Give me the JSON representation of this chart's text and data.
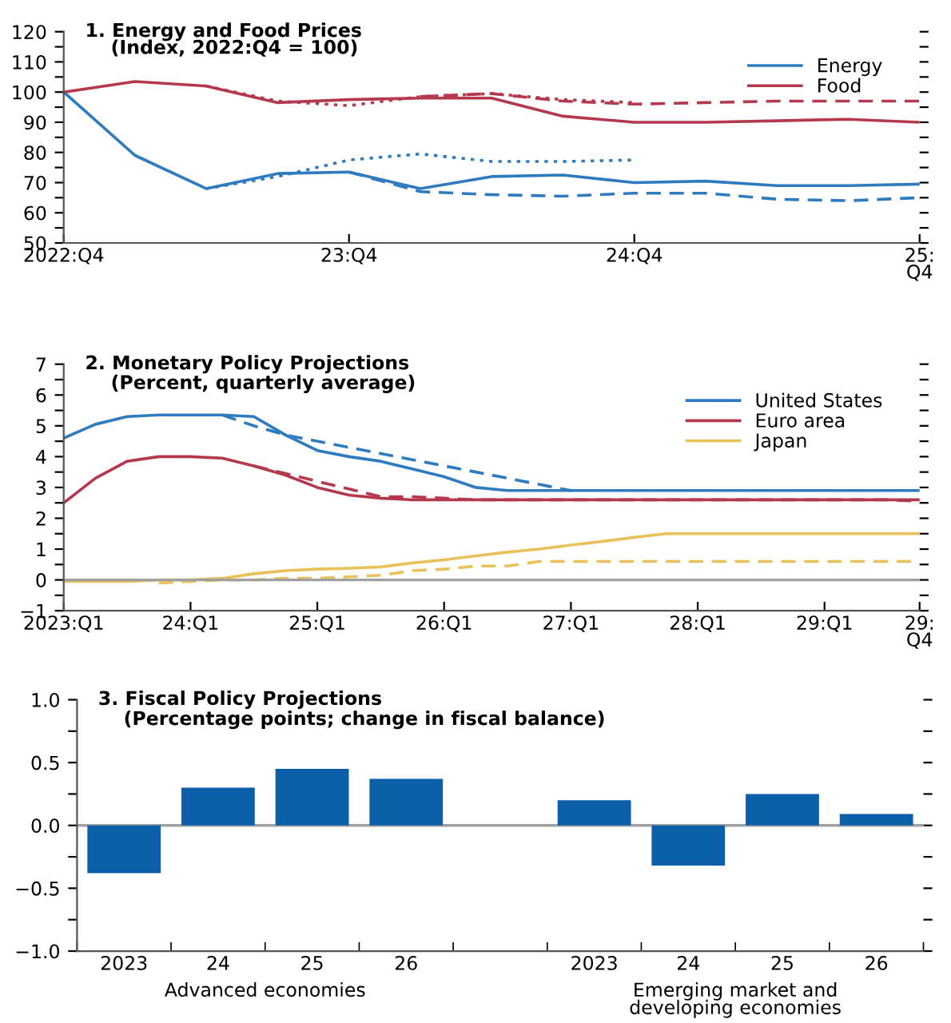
{
  "chart_data": [
    {
      "type": "line",
      "title": "1. Energy and Food Prices",
      "subtitle": "(Index, 2022:Q4 = 100)",
      "legend": "top right",
      "categories": [
        "2022:Q4",
        null,
        null,
        null,
        "23:Q4",
        null,
        null,
        null,
        "24:Q4",
        null,
        null,
        null,
        "25:\nQ4"
      ],
      "ylim": [
        50,
        120
      ],
      "yticks": [
        50,
        {
          "value": 55,
          "label": null
        },
        60,
        {
          "value": 65,
          "label": null
        },
        70,
        {
          "value": 75,
          "label": null
        },
        80,
        {
          "value": 85,
          "label": null
        },
        90,
        {
          "value": 95,
          "label": null
        },
        100,
        {
          "value": 105,
          "label": null
        },
        110,
        {
          "value": 115,
          "label": null
        },
        120
      ],
      "series": [
        {
          "name": "Energy",
          "color": "#2f7bbf",
          "line_style": "solid",
          "values": [
            100,
            79,
            68,
            73,
            73.5,
            68,
            72,
            72.5,
            70,
            70.5,
            69,
            69,
            69.5
          ]
        },
        {
          "color": "#2f7bbf",
          "line_style": "dashed",
          "values": [
            null,
            null,
            null,
            null,
            73.5,
            67,
            66,
            65.5,
            66.5,
            66.5,
            64.5,
            64,
            65
          ]
        },
        {
          "color": "#2f7bbf",
          "line_style": "dotted",
          "values": [
            null,
            null,
            68,
            72,
            77.5,
            79.5,
            77,
            77,
            77.5,
            null,
            null,
            null,
            null
          ]
        },
        {
          "name": "Food",
          "color": "#b5394e",
          "line_style": "solid",
          "values": [
            100,
            103.5,
            102,
            96.5,
            97.5,
            98,
            98,
            92,
            90,
            90,
            90.5,
            91,
            90
          ]
        },
        {
          "color": "#b5394e",
          "line_style": "dashed",
          "values": [
            null,
            null,
            null,
            null,
            null,
            98.5,
            99.5,
            97,
            96,
            96.5,
            97,
            97,
            97
          ]
        },
        {
          "color": "#b5394e",
          "line_style": "dotted",
          "values": [
            null,
            null,
            102,
            97,
            95.5,
            98.5,
            99.5,
            97.5,
            96.5,
            null,
            null,
            null,
            null
          ]
        }
      ]
    },
    {
      "type": "line",
      "title": "2. Monetary Policy Projections",
      "subtitle": "(Percent, quarterly average)",
      "legend": "top right",
      "categories": [
        "2023:Q1",
        null,
        null,
        null,
        "24:Q1",
        null,
        null,
        null,
        "25:Q1",
        null,
        null,
        null,
        "26:Q1",
        null,
        null,
        null,
        "27:Q1",
        null,
        null,
        null,
        "28:Q1",
        null,
        null,
        null,
        "29:Q1",
        null,
        null,
        "29:\nQ4"
      ],
      "ylim": [
        -1,
        7
      ],
      "yticks": [
        {
          "value": -1,
          "label": "−1"
        },
        {
          "value": -0.5,
          "label": null
        },
        0,
        {
          "value": 0.5,
          "label": null
        },
        1,
        {
          "value": 1.5,
          "label": null
        },
        2,
        {
          "value": 2.5,
          "label": null
        },
        3,
        {
          "value": 3.5,
          "label": null
        },
        4,
        {
          "value": 4.5,
          "label": null
        },
        5,
        {
          "value": 5.5,
          "label": null
        },
        6,
        {
          "value": 6.5,
          "label": null
        },
        7
      ],
      "ref_lines": [
        {
          "axis": "y",
          "value": 0,
          "color": "#a0a0a0"
        }
      ],
      "series": [
        {
          "name": "United States",
          "color": "#2f7bbf",
          "line_style": "solid",
          "values": [
            4.6,
            5.05,
            5.3,
            5.35,
            5.35,
            5.35,
            5.3,
            4.7,
            4.2,
            4.0,
            3.85,
            3.6,
            3.35,
            3.0,
            2.9,
            2.9,
            2.9,
            2.9,
            2.9,
            2.9,
            2.9,
            2.9,
            2.9,
            2.9,
            2.9,
            2.9,
            2.9,
            2.9
          ]
        },
        {
          "color": "#2f7bbf",
          "line_style": "dashed",
          "values": [
            null,
            null,
            null,
            null,
            null,
            5.35,
            5.0,
            4.7,
            4.5,
            4.3,
            4.1,
            3.9,
            3.7,
            3.5,
            3.3,
            3.1,
            2.9,
            null,
            null,
            null,
            null,
            null,
            null,
            null,
            null,
            null,
            null,
            null
          ]
        },
        {
          "name": "Euro area",
          "color": "#b5394e",
          "line_style": "solid",
          "values": [
            2.5,
            3.3,
            3.85,
            4.0,
            4.0,
            3.95,
            3.7,
            3.4,
            3.0,
            2.75,
            2.65,
            2.6,
            2.6,
            2.6,
            2.6,
            2.6,
            2.6,
            2.6,
            2.6,
            2.6,
            2.6,
            2.6,
            2.6,
            2.6,
            2.6,
            2.6,
            2.6,
            2.6
          ]
        },
        {
          "color": "#b5394e",
          "line_style": "dashed",
          "values": [
            null,
            null,
            null,
            null,
            null,
            null,
            3.7,
            3.45,
            3.2,
            2.95,
            2.7,
            2.7,
            2.65,
            2.6,
            2.6,
            2.6,
            2.6,
            2.6,
            2.6,
            2.6,
            2.6,
            2.6,
            2.6,
            2.6,
            2.6,
            2.6,
            2.6,
            2.55
          ]
        },
        {
          "name": "Japan",
          "color": "#e8c15a",
          "line_style": "solid",
          "values": [
            -0.05,
            -0.05,
            -0.05,
            0,
            0,
            0.05,
            0.2,
            0.3,
            0.35,
            0.38,
            0.42,
            0.55,
            0.65,
            0.78,
            0.9,
            1.0,
            1.13,
            1.25,
            1.38,
            1.5,
            1.5,
            1.5,
            1.5,
            1.5,
            1.5,
            1.5,
            1.5,
            1.5
          ]
        },
        {
          "color": "#e8c15a",
          "line_style": "dashed",
          "values": [
            null,
            null,
            null,
            -0.1,
            -0.05,
            0,
            0,
            0.05,
            0.05,
            0.1,
            0.15,
            0.3,
            0.35,
            0.45,
            0.45,
            0.6,
            0.6,
            0.6,
            0.6,
            0.6,
            0.6,
            0.6,
            0.6,
            0.6,
            0.6,
            0.6,
            0.6,
            0.6
          ]
        }
      ]
    },
    {
      "type": "bar",
      "title": "3. Fiscal Policy Projections",
      "subtitle": "(Percentage points; change in fiscal balance)",
      "categories": [
        "2023",
        "24",
        "25",
        "26",
        null,
        "2023",
        "24",
        "25",
        "26"
      ],
      "values": [
        -0.38,
        0.3,
        0.45,
        0.37,
        null,
        0.2,
        -0.32,
        0.25,
        0.09
      ],
      "color": "#0b5ea8",
      "ylim": [
        -1,
        1
      ],
      "yticks": [
        {
          "value": -1,
          "label": "−1.0"
        },
        {
          "value": -0.75,
          "label": null
        },
        {
          "value": -0.5,
          "label": "−0.5"
        },
        {
          "value": -0.25,
          "label": null
        },
        {
          "value": 0,
          "label": "0.0"
        },
        {
          "value": 0.25,
          "label": null
        },
        {
          "value": 0.5,
          "label": "0.5"
        },
        {
          "value": 0.75,
          "label": null
        },
        {
          "value": 1,
          "label": "1.0"
        }
      ],
      "ref_lines": [
        {
          "axis": "y",
          "value": 0,
          "color": "#a0a0a0"
        }
      ],
      "annotations": [
        "Advanced economies",
        "Emerging market and\ndeveloping economies"
      ]
    }
  ]
}
